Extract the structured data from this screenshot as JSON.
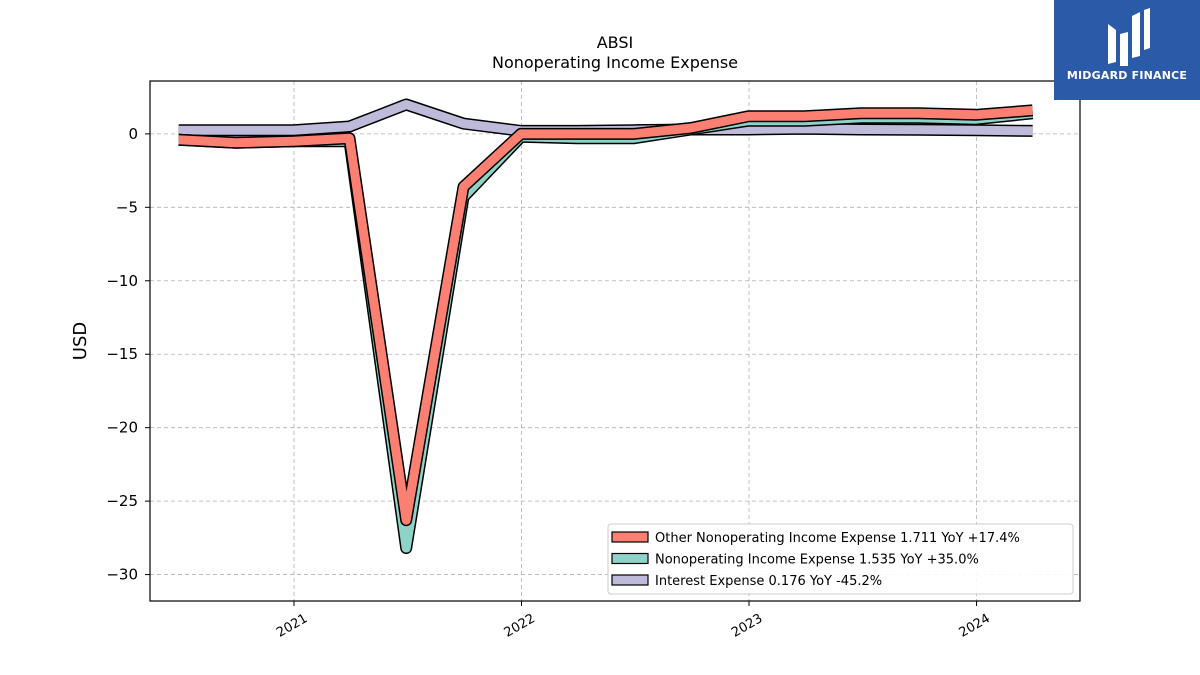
{
  "chart_data": {
    "type": "area",
    "title": "ABSI",
    "subtitle": "Nonoperating Income Expense",
    "ylabel": "USD",
    "xlabel": "",
    "ylim": [
      -31.8,
      3.6
    ],
    "xlim": [
      "2020-05-15",
      "2024-06-15"
    ],
    "grid": true,
    "legend_position": "lower right",
    "y_ticks": [
      0,
      -5,
      -10,
      -15,
      -20,
      -25,
      -30
    ],
    "y_tick_labels": [
      "0",
      "−5",
      "−10",
      "−15",
      "−20",
      "−25",
      "−30"
    ],
    "x_ticks": [
      "2021-01-01",
      "2022-01-01",
      "2023-01-01",
      "2024-01-01"
    ],
    "x_tick_labels": [
      "2021",
      "2022",
      "2023",
      "2024"
    ],
    "x": [
      "2020-06-30",
      "2020-09-30",
      "2020-12-31",
      "2021-03-31",
      "2021-06-30",
      "2021-09-30",
      "2021-12-31",
      "2022-03-31",
      "2022-06-30",
      "2022-09-30",
      "2022-12-31",
      "2023-03-31",
      "2023-06-30",
      "2023-09-30",
      "2023-12-31",
      "2024-03-31"
    ],
    "series": [
      {
        "name": "Interest Expense",
        "legend_label": "Interest Expense  0.176 YoY -45.2%",
        "color": "#bebada",
        "values": [
          0.25,
          0.25,
          0.25,
          0.5,
          2.0,
          0.7,
          0.2,
          0.2,
          0.25,
          0.3,
          0.3,
          0.35,
          0.3,
          0.28,
          0.25,
          0.2
        ]
      },
      {
        "name": "Nonoperating Income Expense",
        "legend_label": "Nonoperating Income Expense  1.535 YoY +35.0%",
        "color": "#8dd3c7",
        "values": [
          -0.4,
          -0.6,
          -0.5,
          -0.5,
          -28.2,
          -4.3,
          -0.2,
          -0.3,
          -0.3,
          0.3,
          0.9,
          0.9,
          1.1,
          1.1,
          1.0,
          1.4
        ]
      },
      {
        "name": "Other Nonoperating Income Expense",
        "legend_label": "Other Nonoperating Income Expense  1.711 YoY +17.4%",
        "color": "#fb8072",
        "values": [
          -0.4,
          -0.6,
          -0.5,
          -0.3,
          -26.3,
          -3.6,
          0.0,
          0.0,
          0.0,
          0.4,
          1.2,
          1.2,
          1.4,
          1.4,
          1.3,
          1.6
        ]
      }
    ]
  },
  "logo": {
    "text": "MIDGARD FINANCE",
    "color": "#2b5aa8"
  }
}
